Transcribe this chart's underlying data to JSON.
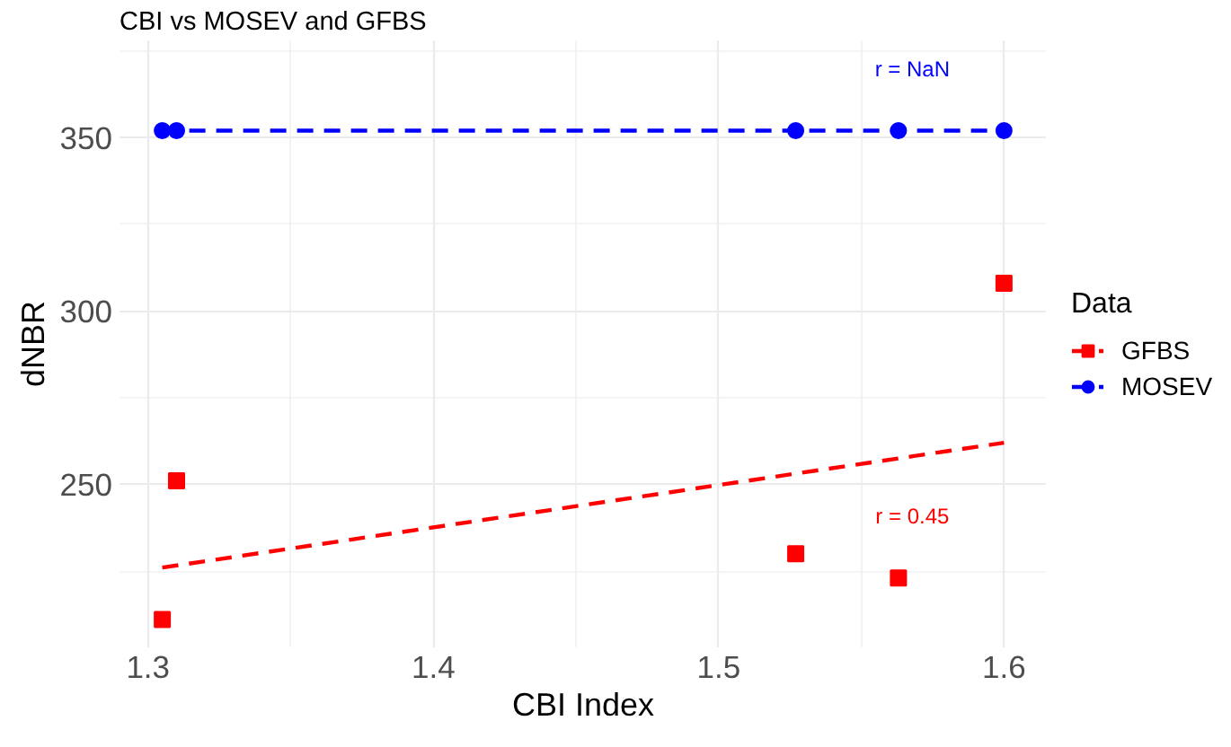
{
  "chart_data": {
    "type": "scatter",
    "title": "CBI vs MOSEV and GFBS",
    "xlabel": "CBI Index",
    "ylabel": "dNBR",
    "legend_title": "Data",
    "xlim": [
      1.29,
      1.615
    ],
    "xticks": [
      1.3,
      {
        "value": 1.35,
        "label": null
      },
      1.4,
      {
        "value": 1.45,
        "label": null
      },
      1.5,
      {
        "value": 1.55,
        "label": null
      },
      1.6
    ],
    "ylim": [
      203,
      378
    ],
    "yticks": [
      {
        "value": 225,
        "label": null
      },
      250,
      {
        "value": 275,
        "label": null
      },
      300,
      {
        "value": 325,
        "label": null
      },
      350,
      {
        "value": 375,
        "label": null
      }
    ],
    "grid": true,
    "legend": "right",
    "series": [
      {
        "name": "GFBS",
        "marker": "square",
        "color": "#ff0000",
        "x": [
          1.305,
          1.31,
          1.527,
          1.563,
          1.6
        ],
        "values": [
          211,
          251,
          230,
          223,
          308
        ]
      },
      {
        "name": "MOSEV",
        "marker": "circle",
        "color": "#0000ff",
        "x": [
          1.305,
          1.31,
          1.527,
          1.563,
          1.6
        ],
        "values": [
          352,
          352,
          352,
          352,
          352
        ]
      },
      {
        "type": "line",
        "line_style": "dashed",
        "marker": "none",
        "color": "#ff0000",
        "x": [
          1.305,
          1.6
        ],
        "values": [
          226,
          262
        ]
      },
      {
        "type": "line",
        "line_style": "dashed",
        "marker": "none",
        "color": "#0000ff",
        "x": [
          1.305,
          1.6
        ],
        "values": [
          352,
          352
        ]
      }
    ],
    "annotations": [
      "r = 0.45",
      "r = NaN"
    ]
  }
}
